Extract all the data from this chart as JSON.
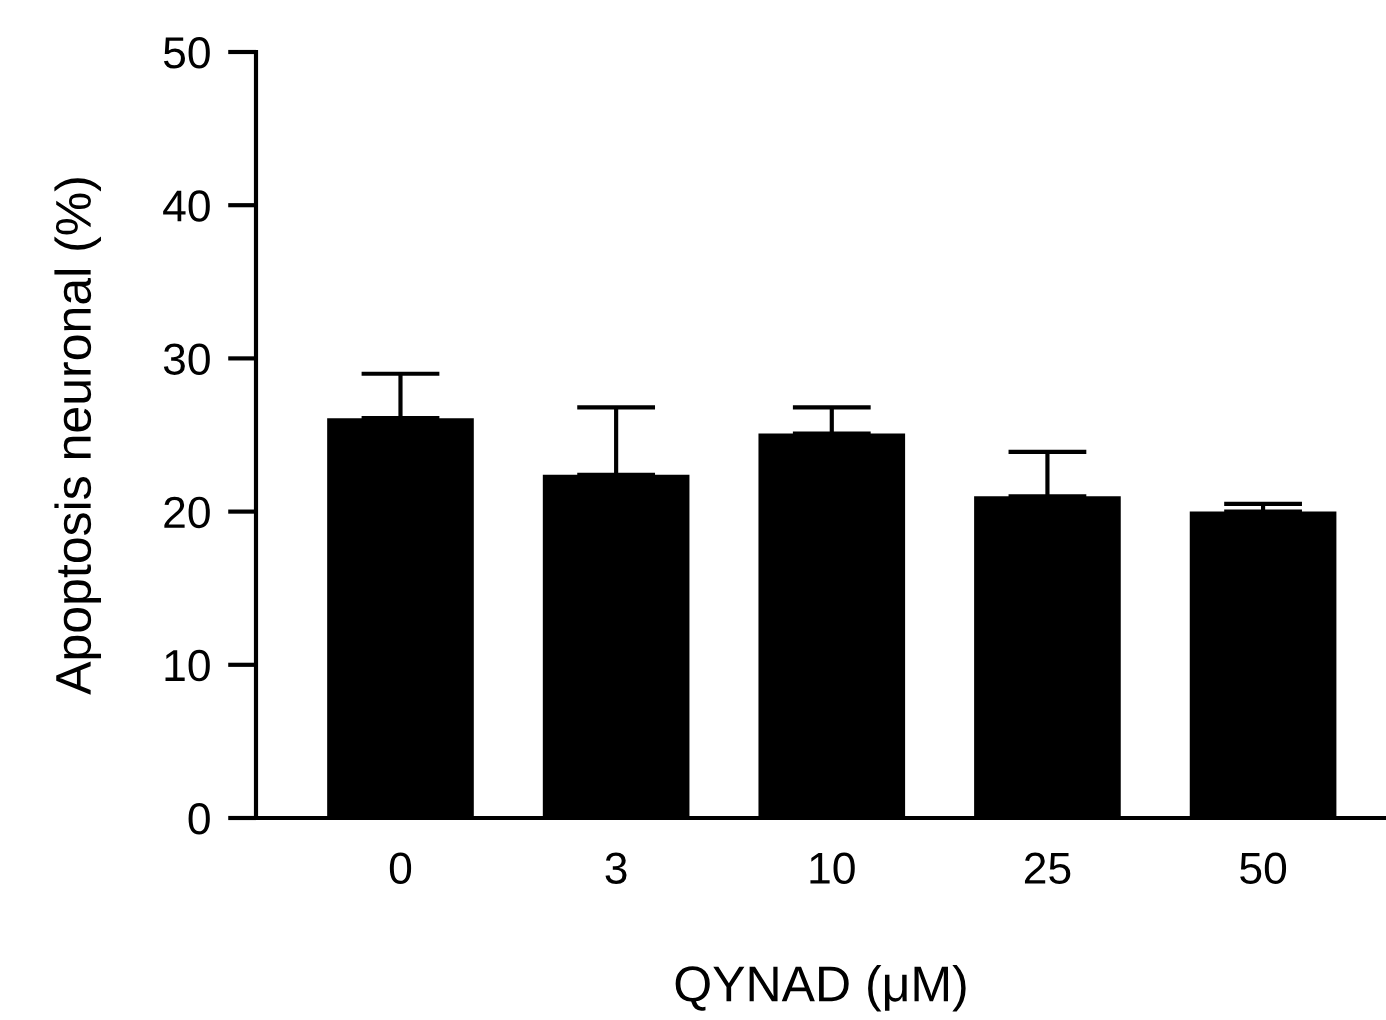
{
  "chart_data": {
    "type": "bar",
    "xlabel": "QYNAD (μM)",
    "ylabel": "Apoptosis neuronal (%)",
    "categories": [
      "0",
      "3",
      "10",
      "25",
      "50"
    ],
    "values": [
      26.1,
      22.4,
      25.1,
      21.0,
      20.0
    ],
    "errors": [
      [
        26.1,
        29.0
      ],
      [
        22.4,
        26.8
      ],
      [
        25.1,
        26.8
      ],
      [
        21.0,
        23.9
      ],
      [
        20.0,
        20.5
      ]
    ],
    "color": "#000000",
    "ylim": [
      0,
      50
    ],
    "yticks": [
      0,
      10,
      20,
      30,
      40,
      50
    ],
    "grid": false,
    "legend": false
  }
}
